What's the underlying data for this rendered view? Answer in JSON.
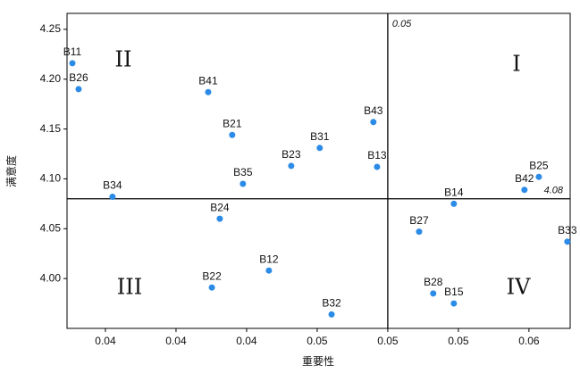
{
  "chart_data": {
    "type": "scatter",
    "xlabel": "重要性",
    "ylabel": "满意度",
    "color": "#2b8be6",
    "labels": [
      "B11",
      "B26",
      "B41",
      "B21",
      "B43",
      "B31",
      "B23",
      "B13",
      "B35",
      "B25",
      "B42",
      "B34",
      "B14",
      "B24",
      "B27",
      "B33",
      "B12",
      "B22",
      "B28",
      "B15",
      "B32"
    ],
    "x": [
      0.03883,
      0.03905,
      0.04364,
      0.04449,
      0.04949,
      0.04759,
      0.04658,
      0.04962,
      0.04487,
      0.05535,
      0.05484,
      0.04025,
      0.05234,
      0.04405,
      0.05111,
      0.05636,
      0.04579,
      0.04377,
      0.05161,
      0.05234,
      0.04801
    ],
    "values": [
      4.216,
      4.19,
      4.187,
      4.144,
      4.157,
      4.131,
      4.113,
      4.112,
      4.095,
      4.102,
      4.089,
      4.082,
      4.075,
      4.06,
      4.047,
      4.037,
      4.008,
      3.991,
      3.985,
      3.975,
      3.964
    ],
    "xlim": [
      0.03864,
      0.05646
    ],
    "ylim": [
      3.95,
      4.266
    ],
    "xticks": [
      0.04,
      {
        "value": 0.0425,
        "label": "0.04"
      },
      {
        "value": 0.045,
        "label": "0.04"
      },
      {
        "value": 0.0475,
        "label": "0.05"
      },
      0.05,
      {
        "value": 0.0525,
        "label": "0.05"
      },
      {
        "value": 0.055,
        "label": "0.06"
      }
    ],
    "yticks": [
      {
        "value": 4.0,
        "label": "4.00"
      },
      4.05,
      {
        "value": 4.1,
        "label": "4.10"
      },
      4.15,
      {
        "value": 4.2,
        "label": "4.20"
      },
      4.25
    ],
    "reference_lines": {
      "x": 0.05,
      "x_label": "0.05",
      "y": 4.08,
      "y_label": "4.08"
    },
    "quadrants": [
      "I",
      "II",
      "III",
      "IV"
    ]
  }
}
